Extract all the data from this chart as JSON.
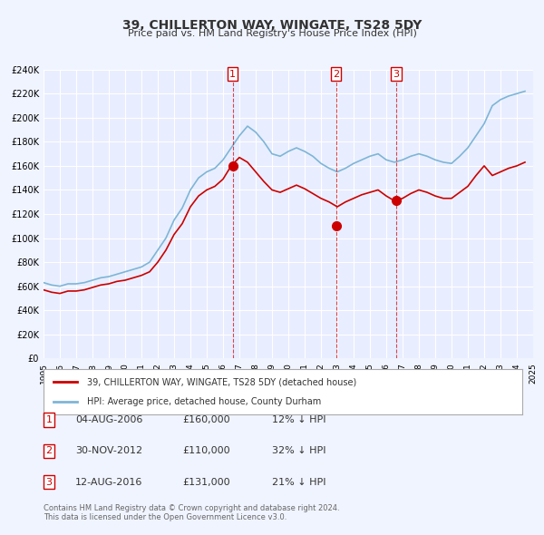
{
  "title": "39, CHILLERTON WAY, WINGATE, TS28 5DY",
  "subtitle": "Price paid vs. HM Land Registry's House Price Index (HPI)",
  "ylabel": "",
  "background_color": "#f0f4ff",
  "plot_bg_color": "#e8eeff",
  "red_line_label": "39, CHILLERTON WAY, WINGATE, TS28 5DY (detached house)",
  "blue_line_label": "HPI: Average price, detached house, County Durham",
  "footer": "Contains HM Land Registry data © Crown copyright and database right 2024.\nThis data is licensed under the Open Government Licence v3.0.",
  "sales": [
    {
      "num": 1,
      "date_label": "04-AUG-2006",
      "price_label": "£160,000",
      "pct_label": "12% ↓ HPI",
      "year": 2006.59,
      "price": 160000
    },
    {
      "num": 2,
      "date_label": "30-NOV-2012",
      "price_label": "£110,000",
      "pct_label": "32% ↓ HPI",
      "year": 2012.92,
      "price": 110000
    },
    {
      "num": 3,
      "date_label": "12-AUG-2016",
      "price_label": "£131,000",
      "pct_label": "21% ↓ HPI",
      "year": 2016.61,
      "price": 131000
    }
  ],
  "hpi_data": {
    "years": [
      1995,
      1995.5,
      1996,
      1996.5,
      1997,
      1997.5,
      1998,
      1998.5,
      1999,
      1999.5,
      2000,
      2000.5,
      2001,
      2001.5,
      2002,
      2002.5,
      2003,
      2003.5,
      2004,
      2004.5,
      2005,
      2005.5,
      2006,
      2006.5,
      2007,
      2007.5,
      2008,
      2008.5,
      2009,
      2009.5,
      2010,
      2010.5,
      2011,
      2011.5,
      2012,
      2012.5,
      2013,
      2013.5,
      2014,
      2014.5,
      2015,
      2015.5,
      2016,
      2016.5,
      2017,
      2017.5,
      2018,
      2018.5,
      2019,
      2019.5,
      2020,
      2020.5,
      2021,
      2021.5,
      2022,
      2022.5,
      2023,
      2023.5,
      2024,
      2024.5
    ],
    "values": [
      63000,
      61000,
      60000,
      62000,
      62000,
      63000,
      65000,
      67000,
      68000,
      70000,
      72000,
      74000,
      76000,
      80000,
      90000,
      100000,
      115000,
      125000,
      140000,
      150000,
      155000,
      158000,
      165000,
      175000,
      185000,
      193000,
      188000,
      180000,
      170000,
      168000,
      172000,
      175000,
      172000,
      168000,
      162000,
      158000,
      155000,
      158000,
      162000,
      165000,
      168000,
      170000,
      165000,
      163000,
      165000,
      168000,
      170000,
      168000,
      165000,
      163000,
      162000,
      168000,
      175000,
      185000,
      195000,
      210000,
      215000,
      218000,
      220000,
      222000
    ]
  },
  "red_data": {
    "years": [
      1995,
      1995.5,
      1996,
      1996.5,
      1997,
      1997.5,
      1998,
      1998.5,
      1999,
      1999.5,
      2000,
      2000.5,
      2001,
      2001.5,
      2002,
      2002.5,
      2003,
      2003.5,
      2004,
      2004.5,
      2005,
      2005.5,
      2006,
      2006.5,
      2007,
      2007.5,
      2008,
      2008.5,
      2009,
      2009.5,
      2010,
      2010.5,
      2011,
      2011.5,
      2012,
      2012.5,
      2013,
      2013.5,
      2014,
      2014.5,
      2015,
      2015.5,
      2016,
      2016.5,
      2017,
      2017.5,
      2018,
      2018.5,
      2019,
      2019.5,
      2020,
      2020.5,
      2021,
      2021.5,
      2022,
      2022.5,
      2023,
      2023.5,
      2024,
      2024.5
    ],
    "values": [
      57000,
      55000,
      54000,
      56000,
      56000,
      57000,
      59000,
      61000,
      62000,
      64000,
      65000,
      67000,
      69000,
      72000,
      80000,
      90000,
      103000,
      112000,
      126000,
      135000,
      140000,
      143000,
      149000,
      160000,
      167000,
      163000,
      155000,
      147000,
      140000,
      138000,
      141000,
      144000,
      141000,
      137000,
      133000,
      130000,
      126000,
      130000,
      133000,
      136000,
      138000,
      140000,
      135000,
      131000,
      133000,
      137000,
      140000,
      138000,
      135000,
      133000,
      133000,
      138000,
      143000,
      152000,
      160000,
      152000,
      155000,
      158000,
      160000,
      163000
    ]
  },
  "ylim": [
    0,
    240000
  ],
  "xlim": [
    1995,
    2025
  ],
  "yticks": [
    0,
    20000,
    40000,
    60000,
    80000,
    100000,
    120000,
    140000,
    160000,
    180000,
    200000,
    220000,
    240000
  ],
  "ytick_labels": [
    "£0",
    "£20K",
    "£40K",
    "£60K",
    "£80K",
    "£100K",
    "£120K",
    "£140K",
    "£160K",
    "£180K",
    "£200K",
    "£220K",
    "£240K"
  ],
  "xticks": [
    1995,
    1996,
    1997,
    1998,
    1999,
    2000,
    2001,
    2002,
    2003,
    2004,
    2005,
    2006,
    2007,
    2008,
    2009,
    2010,
    2011,
    2012,
    2013,
    2014,
    2015,
    2016,
    2017,
    2018,
    2019,
    2020,
    2021,
    2022,
    2023,
    2024,
    2025
  ]
}
